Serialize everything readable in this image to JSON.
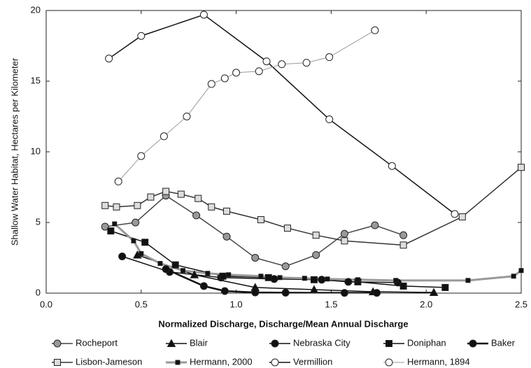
{
  "chart_data": {
    "type": "line",
    "xlabel": "Normalized Discharge, Discharge/Mean Annual Discharge",
    "ylabel": "Shallow Water Habitat, Hectares per Kilometer",
    "xlim": [
      0,
      2.5
    ],
    "ylim": [
      0,
      20
    ],
    "xticks": [
      {
        "value": 0,
        "label": "0.0"
      },
      0.5,
      {
        "value": 1,
        "label": "1.0"
      },
      1.5,
      {
        "value": 2,
        "label": "2.0"
      },
      2.5
    ],
    "yticks": [
      0,
      5,
      10,
      15,
      20
    ],
    "legend": "bottom",
    "series": [
      {
        "name": "Rocheport",
        "color": "#444444",
        "marker": "circle",
        "marker_fill": "#999999",
        "line_width": 1.5,
        "x": [
          0.31,
          0.47,
          0.63,
          0.79,
          0.95,
          1.1,
          1.26,
          1.42,
          1.57,
          1.73,
          1.88
        ],
        "values": [
          4.7,
          5.0,
          6.9,
          5.5,
          4.0,
          2.5,
          1.9,
          2.7,
          4.2,
          4.8,
          4.1
        ]
      },
      {
        "name": "Blair",
        "color": "#111111",
        "marker": "triangle",
        "marker_fill": "#111111",
        "line_width": 1.5,
        "x": [
          0.48,
          0.78,
          1.1,
          1.41,
          1.72,
          2.04
        ],
        "values": [
          2.7,
          1.3,
          0.4,
          0.25,
          0.1,
          0.05
        ]
      },
      {
        "name": "Nebraska City",
        "color": "#111111",
        "marker": "circle",
        "marker_fill": "#111111",
        "line_width": 1.5,
        "x": [
          0.4,
          0.65,
          0.92,
          1.2,
          1.45,
          1.59,
          1.85
        ],
        "values": [
          2.6,
          1.5,
          1.1,
          1.0,
          0.95,
          0.8,
          0.75
        ]
      },
      {
        "name": "Doniphan",
        "color": "#111111",
        "marker": "square",
        "marker_fill": "#111111",
        "line_width": 1.5,
        "x": [
          0.34,
          0.52,
          0.68,
          0.93,
          1.17,
          1.41,
          1.64,
          1.88,
          2.1
        ],
        "values": [
          4.4,
          3.6,
          2.0,
          1.2,
          1.1,
          0.95,
          0.8,
          0.5,
          0.4
        ]
      },
      {
        "name": "Baker",
        "color": "#111111",
        "marker": "circle",
        "marker_fill": "#111111",
        "line_width": 2.5,
        "x": [
          0.63,
          0.83,
          0.94,
          1.1,
          1.26,
          1.57,
          1.74
        ],
        "values": [
          1.7,
          0.5,
          0.15,
          0.05,
          0.03,
          0.02,
          0.02
        ]
      },
      {
        "name": "Lisbon-Jameson",
        "color": "#333333",
        "marker": "square",
        "marker_fill": "#dddddd",
        "line_width": 1.5,
        "x": [
          0.31,
          0.37,
          0.48,
          0.55,
          0.63,
          0.71,
          0.8,
          0.87,
          0.95,
          1.13,
          1.27,
          1.42,
          1.57,
          1.88,
          2.19,
          2.5
        ],
        "values": [
          6.2,
          6.1,
          6.2,
          6.8,
          7.2,
          7.0,
          6.7,
          6.1,
          5.8,
          5.2,
          4.6,
          4.1,
          3.7,
          3.4,
          5.4,
          8.9
        ]
      },
      {
        "name": "Hermann, 2000",
        "color": "#999999",
        "marker": "smallsquare",
        "marker_fill": "#111111",
        "line_width": 3,
        "x": [
          0.36,
          0.46,
          0.5,
          0.6,
          0.72,
          0.85,
          0.96,
          1.13,
          1.23,
          1.36,
          1.48,
          1.64,
          1.84,
          2.22,
          2.46,
          2.5
        ],
        "values": [
          4.9,
          3.7,
          2.8,
          2.1,
          1.6,
          1.4,
          1.3,
          1.2,
          1.1,
          1.05,
          1.0,
          0.95,
          0.9,
          0.9,
          1.2,
          1.6
        ]
      },
      {
        "name": "Vermillion",
        "color": "#111111",
        "marker": "circle",
        "marker_fill": "#ffffff",
        "line_width": 1.5,
        "x": [
          0.33,
          0.5,
          0.83,
          1.16,
          1.49,
          1.82,
          2.15
        ],
        "values": [
          16.6,
          18.2,
          19.7,
          16.4,
          12.3,
          9.0,
          5.6
        ]
      },
      {
        "name": "Hermann, 1894",
        "color": "#999999",
        "marker": "circle",
        "marker_fill": "#ffffff",
        "line_width": 1,
        "x": [
          0.38,
          0.5,
          0.62,
          0.74,
          0.87,
          0.94,
          1.0,
          1.12,
          1.24,
          1.37,
          1.49,
          1.73
        ],
        "values": [
          7.9,
          9.7,
          11.1,
          12.5,
          14.8,
          15.2,
          15.6,
          15.7,
          16.2,
          16.3,
          16.7,
          18.6
        ]
      }
    ]
  }
}
